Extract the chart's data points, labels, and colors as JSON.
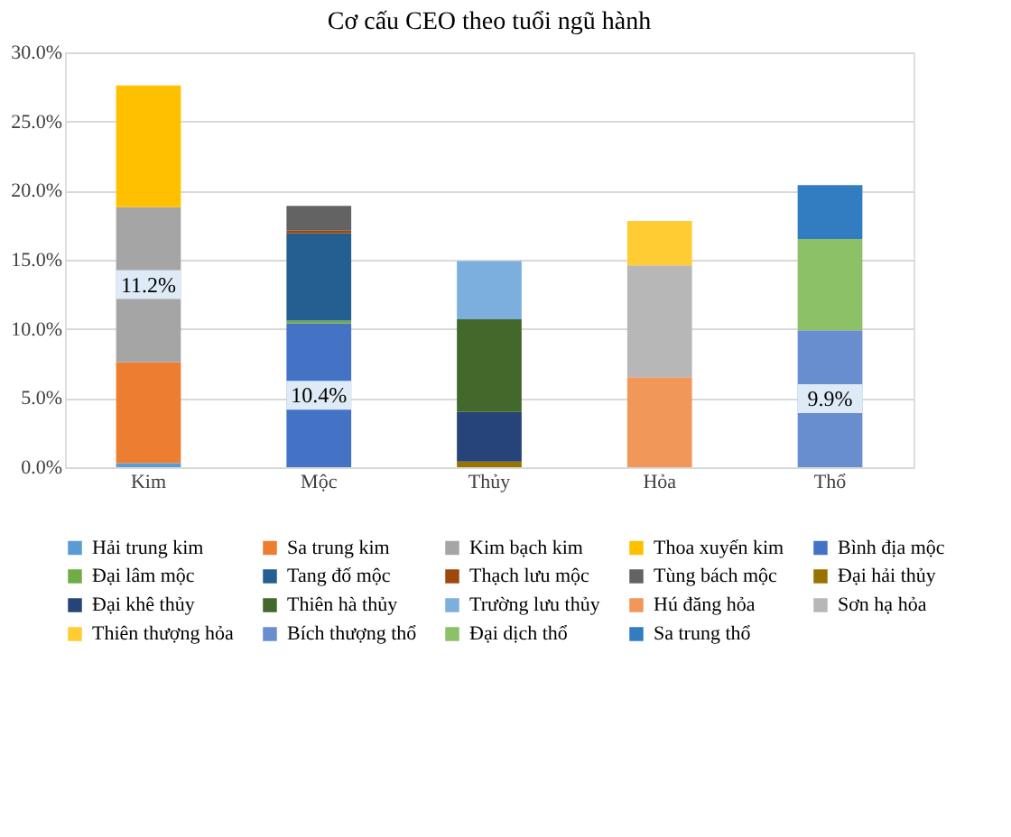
{
  "chart_data": {
    "type": "bar",
    "stacked": true,
    "title": "Cơ cấu CEO theo tuổi ngũ hành",
    "categories": [
      "Kim",
      "Mộc",
      "Thủy",
      "Hỏa",
      "Thổ"
    ],
    "ylim": [
      0,
      30
    ],
    "yticks": [
      {
        "value": 0,
        "label": "0.0%"
      },
      {
        "value": 5,
        "label": "5.0%"
      },
      {
        "value": 10,
        "label": "10.0%"
      },
      {
        "value": 15,
        "label": "15.0%"
      },
      {
        "value": 20,
        "label": "20.0%"
      },
      {
        "value": 25,
        "label": "25.0%"
      },
      {
        "value": 30,
        "label": "30.0%"
      }
    ],
    "grid": "y",
    "legend": "bottom",
    "series": [
      {
        "name": "Hải trung kim",
        "color": "#5b9bd5",
        "values": [
          0.3,
          null,
          null,
          null,
          null
        ]
      },
      {
        "name": "Sa trung kim",
        "color": "#ed7d31",
        "values": [
          7.3,
          null,
          null,
          null,
          null
        ]
      },
      {
        "name": "Kim bạch kim",
        "color": "#a5a5a5",
        "values": [
          11.2,
          null,
          null,
          null,
          null
        ],
        "value_labels": [
          "11.2%",
          null,
          null,
          null,
          null
        ]
      },
      {
        "name": "Thoa xuyến kim",
        "color": "#ffc000",
        "values": [
          8.8,
          null,
          null,
          null,
          null
        ]
      },
      {
        "name": "Bình địa mộc",
        "color": "#4472c4",
        "values": [
          null,
          10.4,
          null,
          null,
          null
        ],
        "value_labels": [
          null,
          "10.4%",
          null,
          null,
          null
        ]
      },
      {
        "name": "Đại lâm mộc",
        "color": "#70ad47",
        "values": [
          null,
          0.2,
          null,
          null,
          null
        ]
      },
      {
        "name": "Tang đố mộc",
        "color": "#255e91",
        "values": [
          null,
          6.3,
          null,
          null,
          null
        ]
      },
      {
        "name": "Thạch lưu mộc",
        "color": "#9e480e",
        "values": [
          null,
          0.2,
          null,
          null,
          null
        ]
      },
      {
        "name": "Tùng bách mộc",
        "color": "#636363",
        "values": [
          null,
          1.8,
          null,
          null,
          null
        ]
      },
      {
        "name": "Đại hải thủy",
        "color": "#997300",
        "values": [
          null,
          null,
          0.4,
          null,
          null
        ]
      },
      {
        "name": "Đại khê thủy",
        "color": "#264478",
        "values": [
          null,
          null,
          3.6,
          null,
          null
        ]
      },
      {
        "name": "Thiên hà thủy",
        "color": "#43682b",
        "values": [
          null,
          null,
          6.7,
          null,
          null
        ]
      },
      {
        "name": "Trường lưu thủy",
        "color": "#7cafdd",
        "values": [
          null,
          null,
          4.2,
          null,
          null
        ]
      },
      {
        "name": "Hú đăng hỏa",
        "color": "#f1975a",
        "values": [
          null,
          null,
          null,
          6.5,
          null
        ]
      },
      {
        "name": "Sơn hạ hỏa",
        "color": "#b7b7b7",
        "values": [
          null,
          null,
          null,
          8.1,
          null
        ]
      },
      {
        "name": "Thiên thượng hỏa",
        "color": "#ffcd33",
        "values": [
          null,
          null,
          null,
          3.2,
          null
        ]
      },
      {
        "name": "Bích thượng thổ",
        "color": "#698ed0",
        "values": [
          null,
          null,
          null,
          null,
          9.9
        ],
        "value_labels": [
          null,
          null,
          null,
          null,
          "9.9%"
        ]
      },
      {
        "name": "Đại dịch thổ",
        "color": "#8cc168",
        "values": [
          null,
          null,
          null,
          null,
          6.6
        ]
      },
      {
        "name": "Sa trung thổ",
        "color": "#327dc2",
        "values": [
          null,
          null,
          null,
          null,
          3.9
        ]
      }
    ]
  }
}
